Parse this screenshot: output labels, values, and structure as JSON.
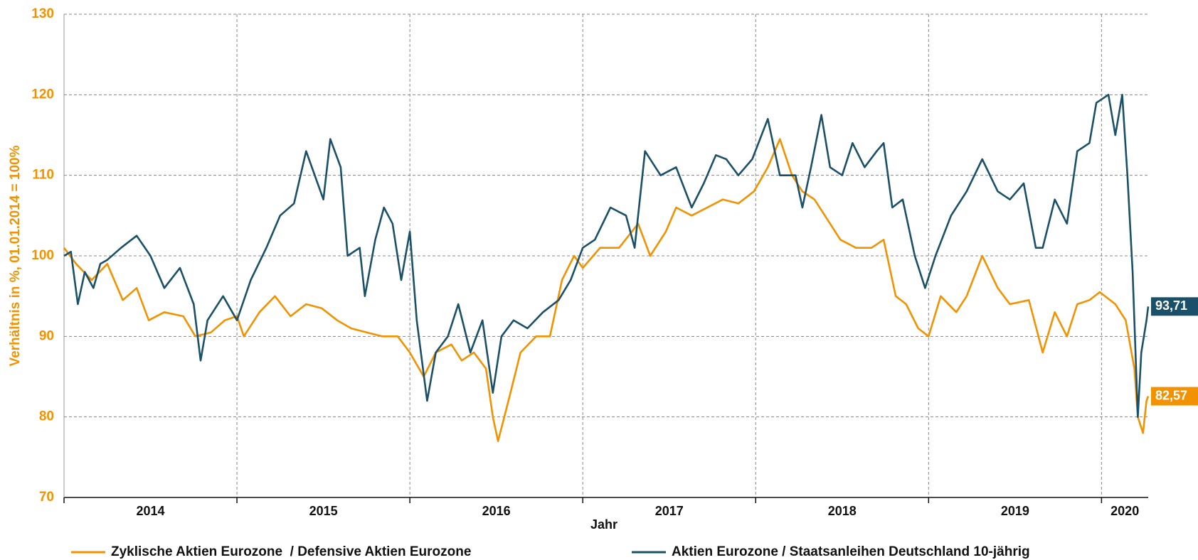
{
  "chart_data": {
    "type": "line",
    "ylabel": "Verhältnis in %, 01.01.2014 = 100%",
    "xlabel": "Jahr",
    "xlim": [
      2014,
      2020.27
    ],
    "xticks": [
      2014,
      2015,
      2016,
      2017,
      2018,
      2019,
      2020
    ],
    "ylim": [
      70,
      130
    ],
    "yticks": [
      70,
      80,
      90,
      100,
      110,
      120,
      130
    ],
    "grid": true,
    "legend": "bottom",
    "series": [
      {
        "name": "Zyklische Aktien Eurozone  / Defensive Aktien Eurozone",
        "color": "#f39200",
        "x": [
          2014.0,
          2014.07,
          2014.16,
          2014.25,
          2014.34,
          2014.42,
          2014.49,
          2014.58,
          2014.69,
          2014.76,
          2014.85,
          2014.93,
          2015.0,
          2015.04,
          2015.13,
          2015.22,
          2015.31,
          2015.4,
          2015.49,
          2015.58,
          2015.66,
          2015.75,
          2015.84,
          2015.93,
          2016.0,
          2016.08,
          2016.15,
          2016.24,
          2016.3,
          2016.37,
          2016.44,
          2016.48,
          2016.51,
          2016.57,
          2016.64,
          2016.73,
          2016.81,
          2016.88,
          2016.95,
          2017.0,
          2017.1,
          2017.21,
          2017.32,
          2017.39,
          2017.48,
          2017.54,
          2017.63,
          2017.72,
          2017.81,
          2017.9,
          2017.99,
          2018.07,
          2018.14,
          2018.21,
          2018.27,
          2018.34,
          2018.4,
          2018.49,
          2018.58,
          2018.67,
          2018.74,
          2018.81,
          2018.87,
          2018.94,
          2019.0,
          2019.07,
          2019.16,
          2019.22,
          2019.31,
          2019.4,
          2019.47,
          2019.58,
          2019.66,
          2019.73,
          2019.8,
          2019.86,
          2019.93,
          2019.99,
          2020.08,
          2020.14,
          2020.19,
          2020.21,
          2020.24,
          2020.26,
          2020.27
        ],
        "values": [
          101,
          99,
          97,
          99,
          94.5,
          96,
          92,
          93,
          92.5,
          90,
          90.5,
          92,
          92.5,
          90,
          93,
          95,
          92.5,
          94,
          93.5,
          92,
          91,
          90.5,
          90,
          90,
          88,
          85,
          88,
          89,
          87,
          88,
          86,
          80,
          77,
          82,
          88,
          90,
          90,
          97,
          100,
          98.5,
          101,
          101,
          104,
          100,
          103,
          106,
          105,
          106,
          107,
          106.5,
          108,
          111,
          114.5,
          110,
          108,
          107,
          105,
          102,
          101,
          101,
          102,
          95,
          94,
          91,
          90,
          95,
          93,
          95,
          100,
          96,
          94,
          94.5,
          88,
          93,
          90,
          94,
          94.5,
          95.5,
          94,
          92,
          86,
          80,
          78,
          82,
          82.57
        ],
        "value_labels": [
          null,
          null,
          null,
          null,
          null,
          null,
          null,
          null,
          null,
          null,
          null,
          null,
          null,
          null,
          null,
          null,
          null,
          null,
          null,
          null,
          null,
          null,
          null,
          null,
          null,
          null,
          null,
          null,
          null,
          null,
          null,
          null,
          null,
          null,
          null,
          null,
          null,
          null,
          null,
          null,
          null,
          null,
          null,
          null,
          null,
          null,
          null,
          null,
          null,
          null,
          null,
          null,
          null,
          null,
          null,
          null,
          null,
          null,
          null,
          null,
          null,
          null,
          null,
          null,
          null,
          null,
          null,
          null,
          null,
          null,
          null,
          null,
          null,
          null,
          null,
          null,
          null,
          null,
          null,
          null,
          null,
          null,
          null,
          null,
          "82,57"
        ]
      },
      {
        "name": "Aktien Eurozone / Staatsanleihen Deutschland 10-jährig",
        "color": "#1a5068",
        "x": [
          2014.0,
          2014.04,
          2014.08,
          2014.12,
          2014.17,
          2014.21,
          2014.25,
          2014.33,
          2014.42,
          2014.5,
          2014.58,
          2014.67,
          2014.75,
          2014.79,
          2014.83,
          2014.92,
          2015.0,
          2015.08,
          2015.17,
          2015.25,
          2015.33,
          2015.4,
          2015.5,
          2015.54,
          2015.6,
          2015.64,
          2015.71,
          2015.74,
          2015.8,
          2015.85,
          2015.9,
          2015.95,
          2016.0,
          2016.04,
          2016.1,
          2016.15,
          2016.22,
          2016.28,
          2016.35,
          2016.42,
          2016.48,
          2016.53,
          2016.6,
          2016.68,
          2016.77,
          2016.86,
          2016.93,
          2017.0,
          2017.07,
          2017.16,
          2017.25,
          2017.3,
          2017.36,
          2017.45,
          2017.54,
          2017.63,
          2017.7,
          2017.77,
          2017.83,
          2017.9,
          2017.98,
          2018.07,
          2018.14,
          2018.23,
          2018.27,
          2018.32,
          2018.38,
          2018.43,
          2018.5,
          2018.56,
          2018.63,
          2018.7,
          2018.74,
          2018.79,
          2018.85,
          2018.92,
          2018.98,
          2019.04,
          2019.13,
          2019.22,
          2019.31,
          2019.4,
          2019.47,
          2019.55,
          2019.62,
          2019.66,
          2019.73,
          2019.8,
          2019.86,
          2019.93,
          2019.97,
          2020.04,
          2020.08,
          2020.12,
          2020.15,
          2020.18,
          2020.21,
          2020.23,
          2020.26,
          2020.27
        ],
        "values": [
          100,
          100.5,
          94,
          98,
          96,
          99,
          99.5,
          101,
          102.5,
          100,
          96,
          98.5,
          94,
          87,
          92,
          95,
          92,
          97,
          101,
          105,
          106.5,
          113,
          107,
          114.5,
          111,
          100,
          101,
          95,
          102,
          106,
          104,
          97,
          103,
          92,
          82,
          88,
          90,
          94,
          88,
          92,
          83,
          90,
          92,
          91,
          93,
          94.5,
          97,
          101,
          102,
          106,
          105,
          101,
          113,
          110,
          111,
          106,
          109,
          112.5,
          112,
          110,
          112,
          117,
          110,
          110,
          106,
          111,
          117.5,
          111,
          110,
          114,
          111,
          113,
          114,
          106,
          107,
          100,
          96,
          100,
          105,
          108,
          112,
          108,
          107,
          109,
          101,
          101,
          107,
          104,
          113,
          114,
          119,
          120,
          115,
          120,
          110,
          98,
          80,
          88,
          92,
          93.71
        ],
        "value_labels": [
          null,
          null,
          null,
          null,
          null,
          null,
          null,
          null,
          null,
          null,
          null,
          null,
          null,
          null,
          null,
          null,
          null,
          null,
          null,
          null,
          null,
          null,
          null,
          null,
          null,
          null,
          null,
          null,
          null,
          null,
          null,
          null,
          null,
          null,
          null,
          null,
          null,
          null,
          null,
          null,
          null,
          null,
          null,
          null,
          null,
          null,
          null,
          null,
          null,
          null,
          null,
          null,
          null,
          null,
          null,
          null,
          null,
          null,
          null,
          null,
          null,
          null,
          null,
          null,
          null,
          null,
          null,
          null,
          null,
          null,
          null,
          null,
          null,
          null,
          null,
          null,
          null,
          null,
          null,
          null,
          null,
          null,
          null,
          null,
          null,
          null,
          null,
          null,
          null,
          null,
          null,
          null,
          null,
          null,
          null,
          null,
          null,
          null,
          null,
          "93,71"
        ]
      }
    ]
  }
}
